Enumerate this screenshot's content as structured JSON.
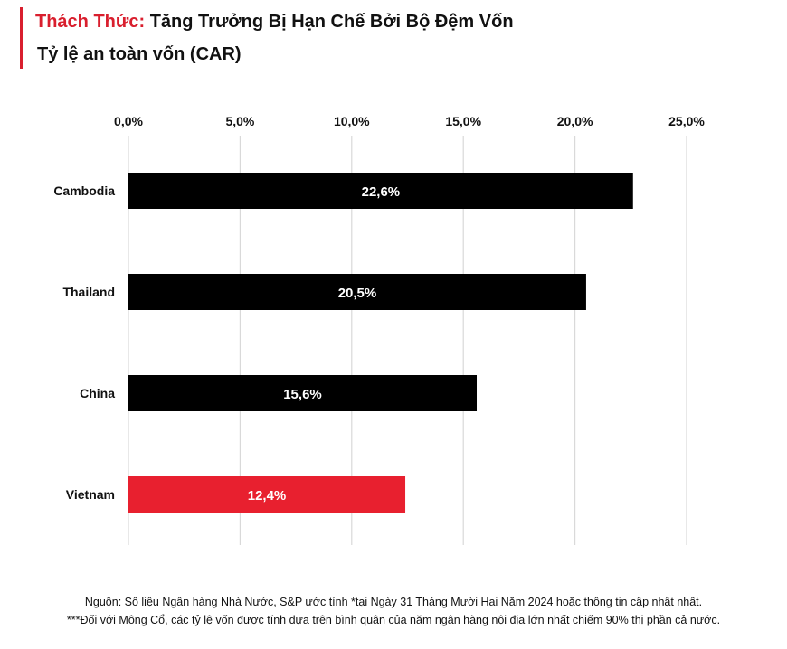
{
  "header": {
    "title_accent": "Thách Thức:",
    "title_rest": "Tăng Trưởng Bị Hạn Chế Bởi Bộ Đệm Vốn",
    "subtitle": "Tỷ lệ an toàn vốn (CAR)"
  },
  "colors": {
    "accent": "#d91f2e",
    "bar_default": "#000000",
    "bar_highlight": "#e8202f",
    "grid": "#d9d9d9"
  },
  "chart_data": {
    "type": "bar",
    "orientation": "horizontal",
    "title": "Tỷ lệ an toàn vốn (CAR)",
    "categories": [
      "Cambodia",
      "Thailand",
      "China",
      "Vietnam"
    ],
    "values": [
      22.6,
      20.5,
      15.6,
      12.4
    ],
    "value_labels": [
      "22,6%",
      "20,5%",
      "15,6%",
      "12,4%"
    ],
    "highlight_category": "Vietnam",
    "xlim": [
      0,
      25
    ],
    "x_ticks": [
      0,
      5,
      10,
      15,
      20,
      25
    ],
    "x_tick_labels": [
      "0,0%",
      "5,0%",
      "10,0%",
      "15,0%",
      "20,0%",
      "25,0%"
    ],
    "x_axis_position": "top",
    "grid": true,
    "legend": "none"
  },
  "footer": {
    "source": "Nguồn: Số liệu Ngân hàng Nhà Nước, S&P ước tính *tại Ngày 31 Tháng Mười Hai Năm 2024 hoặc thông tin cập nhật nhất.",
    "note": "***Đối với Mông Cổ, các tỷ lệ vốn được tính dựa trên bình quân của năm ngân hàng nội địa lớn nhất chiếm 90% thị phần cả nước."
  }
}
